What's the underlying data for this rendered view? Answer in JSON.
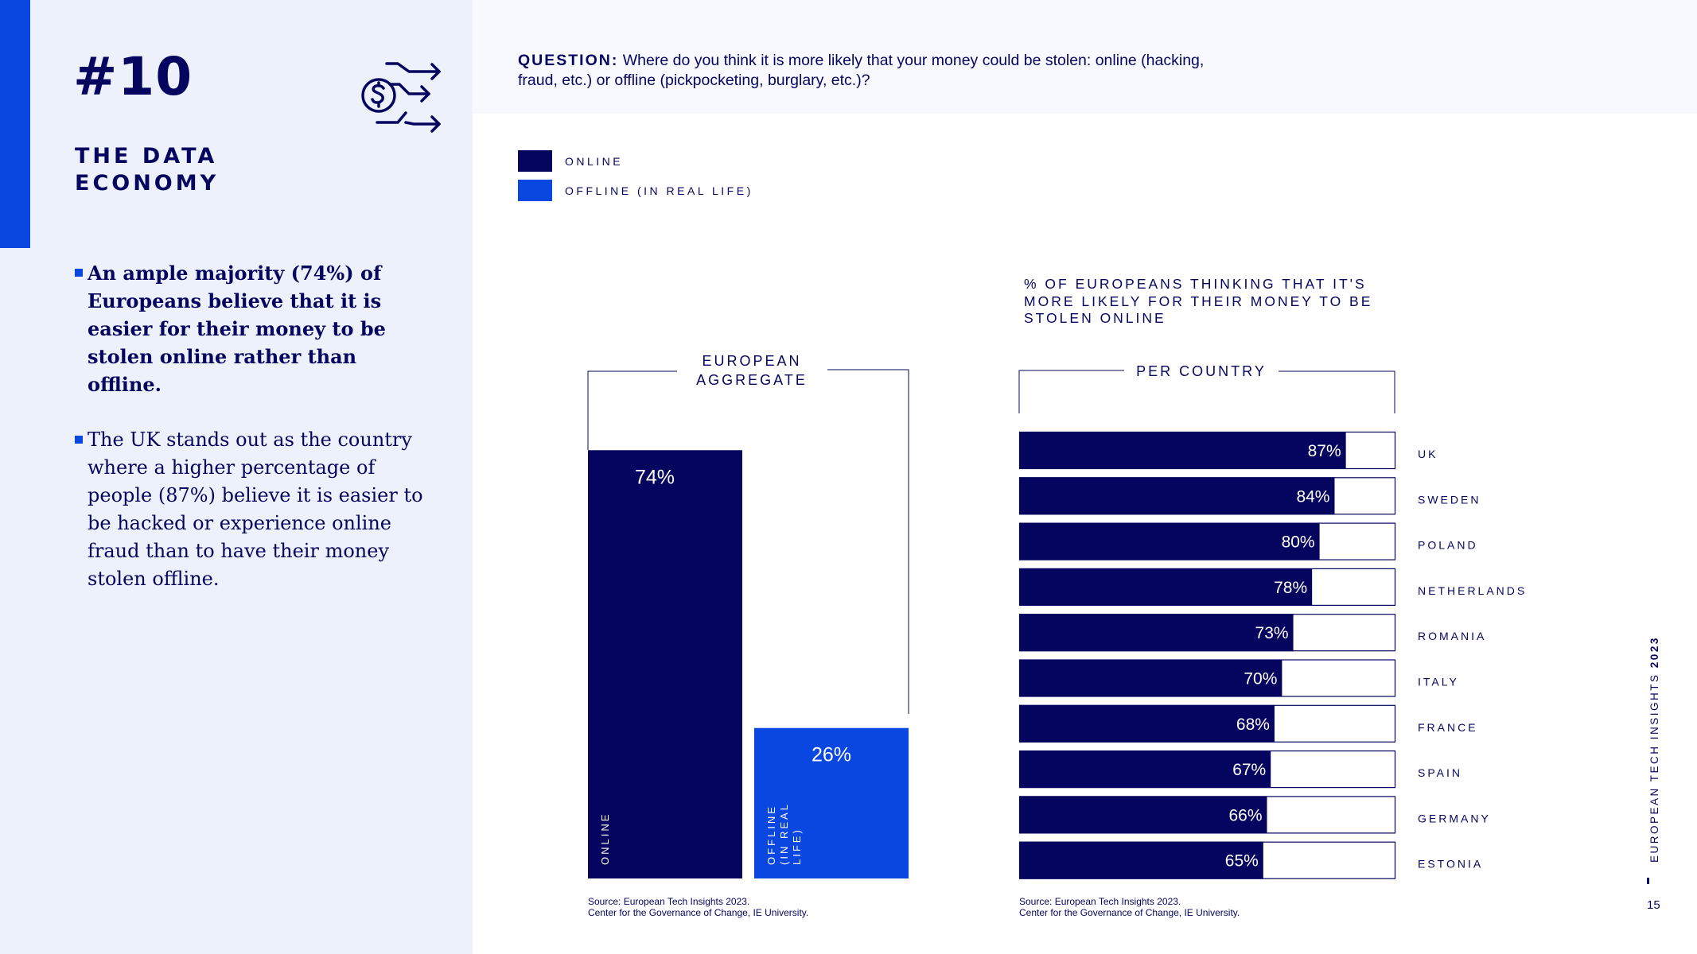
{
  "section": {
    "number": "#10",
    "title": "THE DATA ECONOMY"
  },
  "bullets": [
    "An ample majority (74%) of Europeans believe that it is easier for their money to be stolen online rather than offline.",
    "The UK stands out as the country where a higher percentage of people (87%) believe it is easier to be hacked or experience online fraud than to have their money stolen offline."
  ],
  "question": {
    "label": "QUESTION:",
    "text": "Where do you think it is more likely that your money could be stolen: online (hacking, fraud, etc.) or offline (pickpocketing, burglary, etc.)?"
  },
  "legend": [
    {
      "label": "ONLINE",
      "color": "#05055f"
    },
    {
      "label": "OFFLINE (IN REAL LIFE)",
      "color": "#0a47e0"
    }
  ],
  "colors": {
    "online": "#05055f",
    "offline": "#0a47e0",
    "accent": "#0a47e0",
    "panel": "#edf1fc"
  },
  "chart_data": [
    {
      "type": "bar",
      "title": "EUROPEAN AGGREGATE",
      "categories": [
        "ONLINE",
        "OFFLINE (IN REAL LIFE)"
      ],
      "bar_labels": [
        [
          "ONLINE"
        ],
        [
          "OFFLINE",
          "(IN REAL",
          "LIFE)"
        ]
      ],
      "values": [
        74,
        26
      ],
      "value_labels": [
        "74%",
        "26%"
      ],
      "colors": [
        "#05055f",
        "#0a47e0"
      ],
      "ylim": [
        0,
        100
      ],
      "xlabel": "",
      "ylabel": ""
    },
    {
      "type": "bar",
      "orientation": "horizontal",
      "heading": "% OF EUROPEANS THINKING THAT IT'S MORE LIKELY FOR THEIR MONEY TO BE STOLEN ONLINE",
      "title": "PER COUNTRY",
      "categories": [
        "UK",
        "SWEDEN",
        "POLAND",
        "NETHERLANDS",
        "ROMANIA",
        "ITALY",
        "FRANCE",
        "SPAIN",
        "GERMANY",
        "ESTONIA"
      ],
      "values": [
        87,
        84,
        80,
        78,
        73,
        70,
        68,
        67,
        66,
        65
      ],
      "value_labels": [
        "87%",
        "84%",
        "80%",
        "78%",
        "73%",
        "70%",
        "68%",
        "67%",
        "66%",
        "65%"
      ],
      "xlim": [
        0,
        100
      ],
      "color": "#05055f"
    }
  ],
  "sources": {
    "left": [
      "Source: European Tech Insights 2023.",
      "Center for the Governance of Change, IE University."
    ],
    "right": [
      "Source: European Tech Insights 2023.",
      "Center for the Governance of Change, IE University."
    ]
  },
  "footer": {
    "report_name": "EUROPEAN TECH INSIGHTS",
    "report_year": "2023",
    "page_number": "15"
  }
}
